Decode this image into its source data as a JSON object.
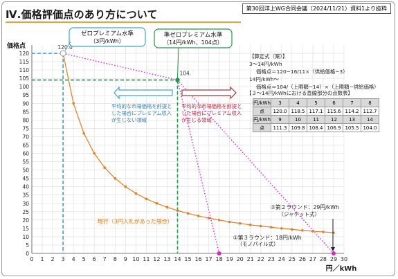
{
  "header": {
    "meeting_info": "第30回洋上WG合同会議（2024/11/21）資料1より抜粋",
    "page_title": "Ⅳ.価格評価点のあり方について"
  },
  "chart_data": {
    "type": "line",
    "ylabel": "価格点",
    "xlabel": "円／kWh",
    "xlim": [
      0,
      30
    ],
    "ylim": [
      0,
      125
    ],
    "x_ticks": [
      0,
      1,
      2,
      3,
      4,
      5,
      6,
      7,
      8,
      9,
      10,
      11,
      12,
      13,
      14,
      15,
      16,
      17,
      18,
      19,
      20,
      21,
      22,
      23,
      24,
      25,
      26,
      27,
      28,
      29,
      30
    ],
    "y_ticks": [
      0,
      5,
      10,
      15,
      20,
      25,
      30,
      35,
      40,
      45,
      50,
      55,
      60,
      65,
      70,
      75,
      80,
      85,
      90,
      95,
      100,
      105,
      110,
      115,
      120
    ],
    "grid": true,
    "colors": {
      "curve": "#e87c1e",
      "zero_premium": "#3aa6c8",
      "quasi_premium": "#1e9a4a",
      "dotted": "#e020d0",
      "arrow_left": "#3aa6c8",
      "arrow_right": "#a8343c"
    },
    "curve": {
      "label": "現行（3円入札があった場合）",
      "x": [
        3,
        4,
        5,
        6,
        7,
        8,
        9,
        10,
        11,
        12,
        13,
        14,
        15,
        16,
        17,
        18,
        19,
        20,
        21,
        22,
        23,
        24,
        25,
        26,
        27,
        28,
        29
      ],
      "y": [
        120,
        90,
        72,
        60,
        51.4,
        45,
        40,
        36,
        32.7,
        30,
        27.7,
        25.7,
        24,
        22.5,
        21.2,
        20,
        18.9,
        18,
        17.1,
        16.4,
        15.7,
        15,
        14.4,
        13.8,
        13.3,
        12.9,
        12.4
      ]
    },
    "zero_premium": {
      "title": "ゼロプレミアム水準",
      "sub": "（3円/kWh）",
      "point_label": "120.0",
      "x": 3,
      "y": 120
    },
    "quasi_premium": {
      "title": "準ゼロプレミアム水準",
      "sub": "（14円/kWh、104点）",
      "point_label": "104.",
      "x": 14,
      "y": 104
    },
    "dotted_lines": [
      {
        "from": [
          3,
          120
        ],
        "to": [
          14,
          104
        ]
      },
      {
        "from": [
          14,
          104
        ],
        "to": [
          18,
          0
        ]
      },
      {
        "from": [
          14,
          104
        ],
        "to": [
          29,
          0
        ]
      }
    ],
    "round_markers": [
      {
        "x": 18,
        "y": 0,
        "label1": "①第３ラウンド：18円/kWh",
        "label2": "（モノパイル式）"
      },
      {
        "x": 29,
        "y": 0,
        "label1": "②第２ラウンド：29円/kWh",
        "label2": "（ジャケット式）"
      }
    ],
    "region_left": "平均的な市場価格を前提とした場合にプレミアム収入が生じない領域",
    "region_right": "平均的な市場価格を前提とした場合にプレミアム収入が生じる領域"
  },
  "formula": {
    "title": "【算定式（案）】",
    "range1": "3～14円/kWh",
    "formula1": "価格点＝120−16/11×（供給価格−3）",
    "range2": "14円/kWh～",
    "formula2": "価格点＝104/（上限額−14）×（上限額−供給価格）"
  },
  "points_table": {
    "title": "【３～14円/kWhにおける直線部分の点数表】",
    "row1_head": "円/kWh",
    "row1": [
      "3",
      "4",
      "5",
      "6",
      "7",
      "8"
    ],
    "row2_head": "点",
    "row2": [
      "120.0",
      "118.5",
      "117.1",
      "115.6",
      "114.2",
      "112.7"
    ],
    "row3_head": "円/kWh",
    "row3": [
      "9",
      "10",
      "11",
      "12",
      "13",
      "14"
    ],
    "row4_head": "点",
    "row4": [
      "111.3",
      "109.8",
      "108.4",
      "106.9",
      "105.5",
      "104.0"
    ]
  }
}
